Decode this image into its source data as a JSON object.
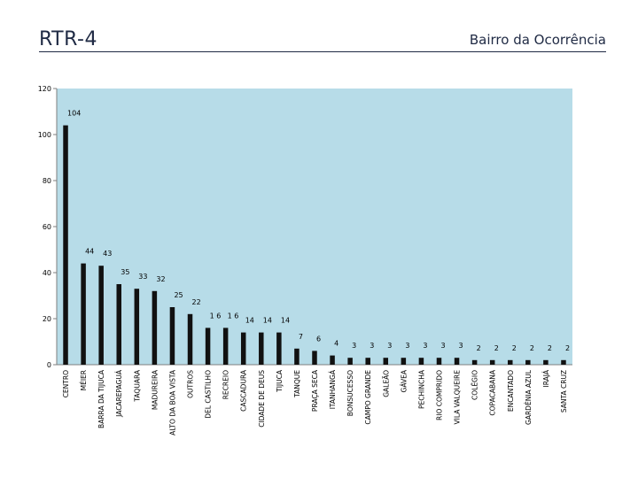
{
  "header": {
    "title": "RTR-4",
    "subtitle": "Bairro da Ocorrência"
  },
  "colors": {
    "plot_background": "#b7dce8",
    "bar": "#111111",
    "title_text": "#1f2a44"
  },
  "chart_data": {
    "type": "bar",
    "title": "",
    "xlabel": "",
    "ylabel": "",
    "ylim": [
      0,
      120
    ],
    "yticks": [
      0,
      20,
      40,
      60,
      80,
      100,
      120
    ],
    "grid": false,
    "legend": "none",
    "categories": [
      "CENTRO",
      "MÉIER",
      "BARRA DA TIJUCA",
      "JACAREPAGUÁ",
      "TAQUARA",
      "MADUREIRA",
      "ALTO DA BOA VISTA",
      "OUTROS",
      "DEL CASTILHO",
      "RECREIO",
      "CASCADURA",
      "CIDADE DE DEUS",
      "TIJUCA",
      "TANQUE",
      "PRAÇA SECA",
      "ITANHANGÁ",
      "BONSUCESSO",
      "CAMPO GRANDE",
      "GALEÃO",
      "GÁVEA",
      "PECHINCHA",
      "RIO COMPRIDO",
      "VILA VALQUEIRE",
      "COLÉGIO",
      "COPACABANA",
      "ENCANTADO",
      "GARDÊNIA AZUL",
      "IRAJÁ",
      "SANTA CRUZ"
    ],
    "values": [
      104,
      44,
      43,
      35,
      33,
      32,
      25,
      22,
      16,
      16,
      14,
      14,
      14,
      7,
      6,
      4,
      3,
      3,
      3,
      3,
      3,
      3,
      3,
      2,
      2,
      2,
      2,
      2,
      2
    ],
    "data_labels": [
      "104",
      "44",
      "43",
      "35",
      "33",
      "32",
      "25",
      "22",
      "1 6",
      "1 6",
      "14",
      "14",
      "14",
      "7",
      "6",
      "4",
      "3",
      "3",
      "3",
      "3",
      "3",
      "3",
      "3",
      "2",
      "2",
      "2",
      "2",
      "2",
      "2"
    ]
  }
}
